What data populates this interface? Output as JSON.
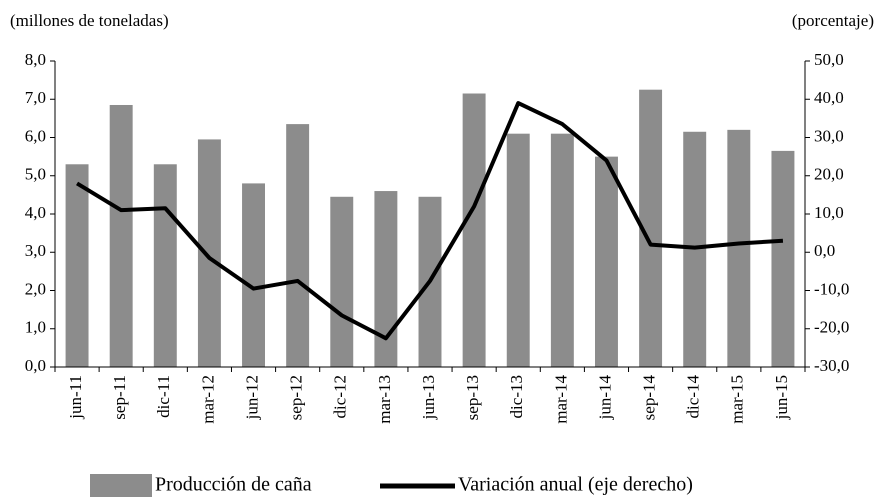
{
  "chart_data": {
    "type": "bar_line",
    "y_label": "(millones de toneladas)",
    "y2_label": "(porcentaje)",
    "categories": [
      "jun-11",
      "sep-11",
      "dic-11",
      "mar-12",
      "jun-12",
      "sep-12",
      "dic-12",
      "mar-13",
      "jun-13",
      "sep-13",
      "dic-13",
      "mar-14",
      "jun-14",
      "sep-14",
      "dic-14",
      "mar-15",
      "jun-15"
    ],
    "series": [
      {
        "name": "Producción de caña",
        "type": "bar",
        "color": "#8c8c8c",
        "values": [
          5.3,
          6.85,
          5.3,
          5.95,
          4.8,
          6.35,
          4.45,
          4.6,
          4.45,
          7.15,
          6.1,
          6.1,
          5.5,
          7.25,
          6.15,
          6.2,
          5.65
        ]
      },
      {
        "name": "Variación anual (eje derecho)",
        "type": "line",
        "axis": "y2",
        "color": "#000000",
        "values": [
          18,
          11,
          11.5,
          -1.5,
          -9.5,
          -7.5,
          -16.5,
          -22.5,
          -7.5,
          12,
          39,
          33.5,
          24,
          2,
          1.2,
          2.3,
          3
        ]
      }
    ],
    "ylim": [
      0,
      8
    ],
    "yticks": [
      {
        "value": 0,
        "label": "0,0"
      },
      {
        "value": 1,
        "label": "1,0"
      },
      {
        "value": 2,
        "label": "2,0"
      },
      {
        "value": 3,
        "label": "3,0"
      },
      {
        "value": 4,
        "label": "4,0"
      },
      {
        "value": 5,
        "label": "5,0"
      },
      {
        "value": 6,
        "label": "6,0"
      },
      {
        "value": 7,
        "label": "7,0"
      },
      {
        "value": 8,
        "label": "8,0"
      }
    ],
    "y2lim": [
      -30,
      50
    ],
    "y2ticks": [
      {
        "value": -30,
        "label": "-30,0"
      },
      {
        "value": -20,
        "label": "-20,0"
      },
      {
        "value": -10,
        "label": "-10,0"
      },
      {
        "value": 0,
        "label": "0,0"
      },
      {
        "value": 10,
        "label": "10,0"
      },
      {
        "value": 20,
        "label": "20,0"
      },
      {
        "value": 30,
        "label": "30,0"
      },
      {
        "value": 40,
        "label": "40,0"
      },
      {
        "value": 50,
        "label": "50,0"
      }
    ],
    "legend": "bottom"
  }
}
